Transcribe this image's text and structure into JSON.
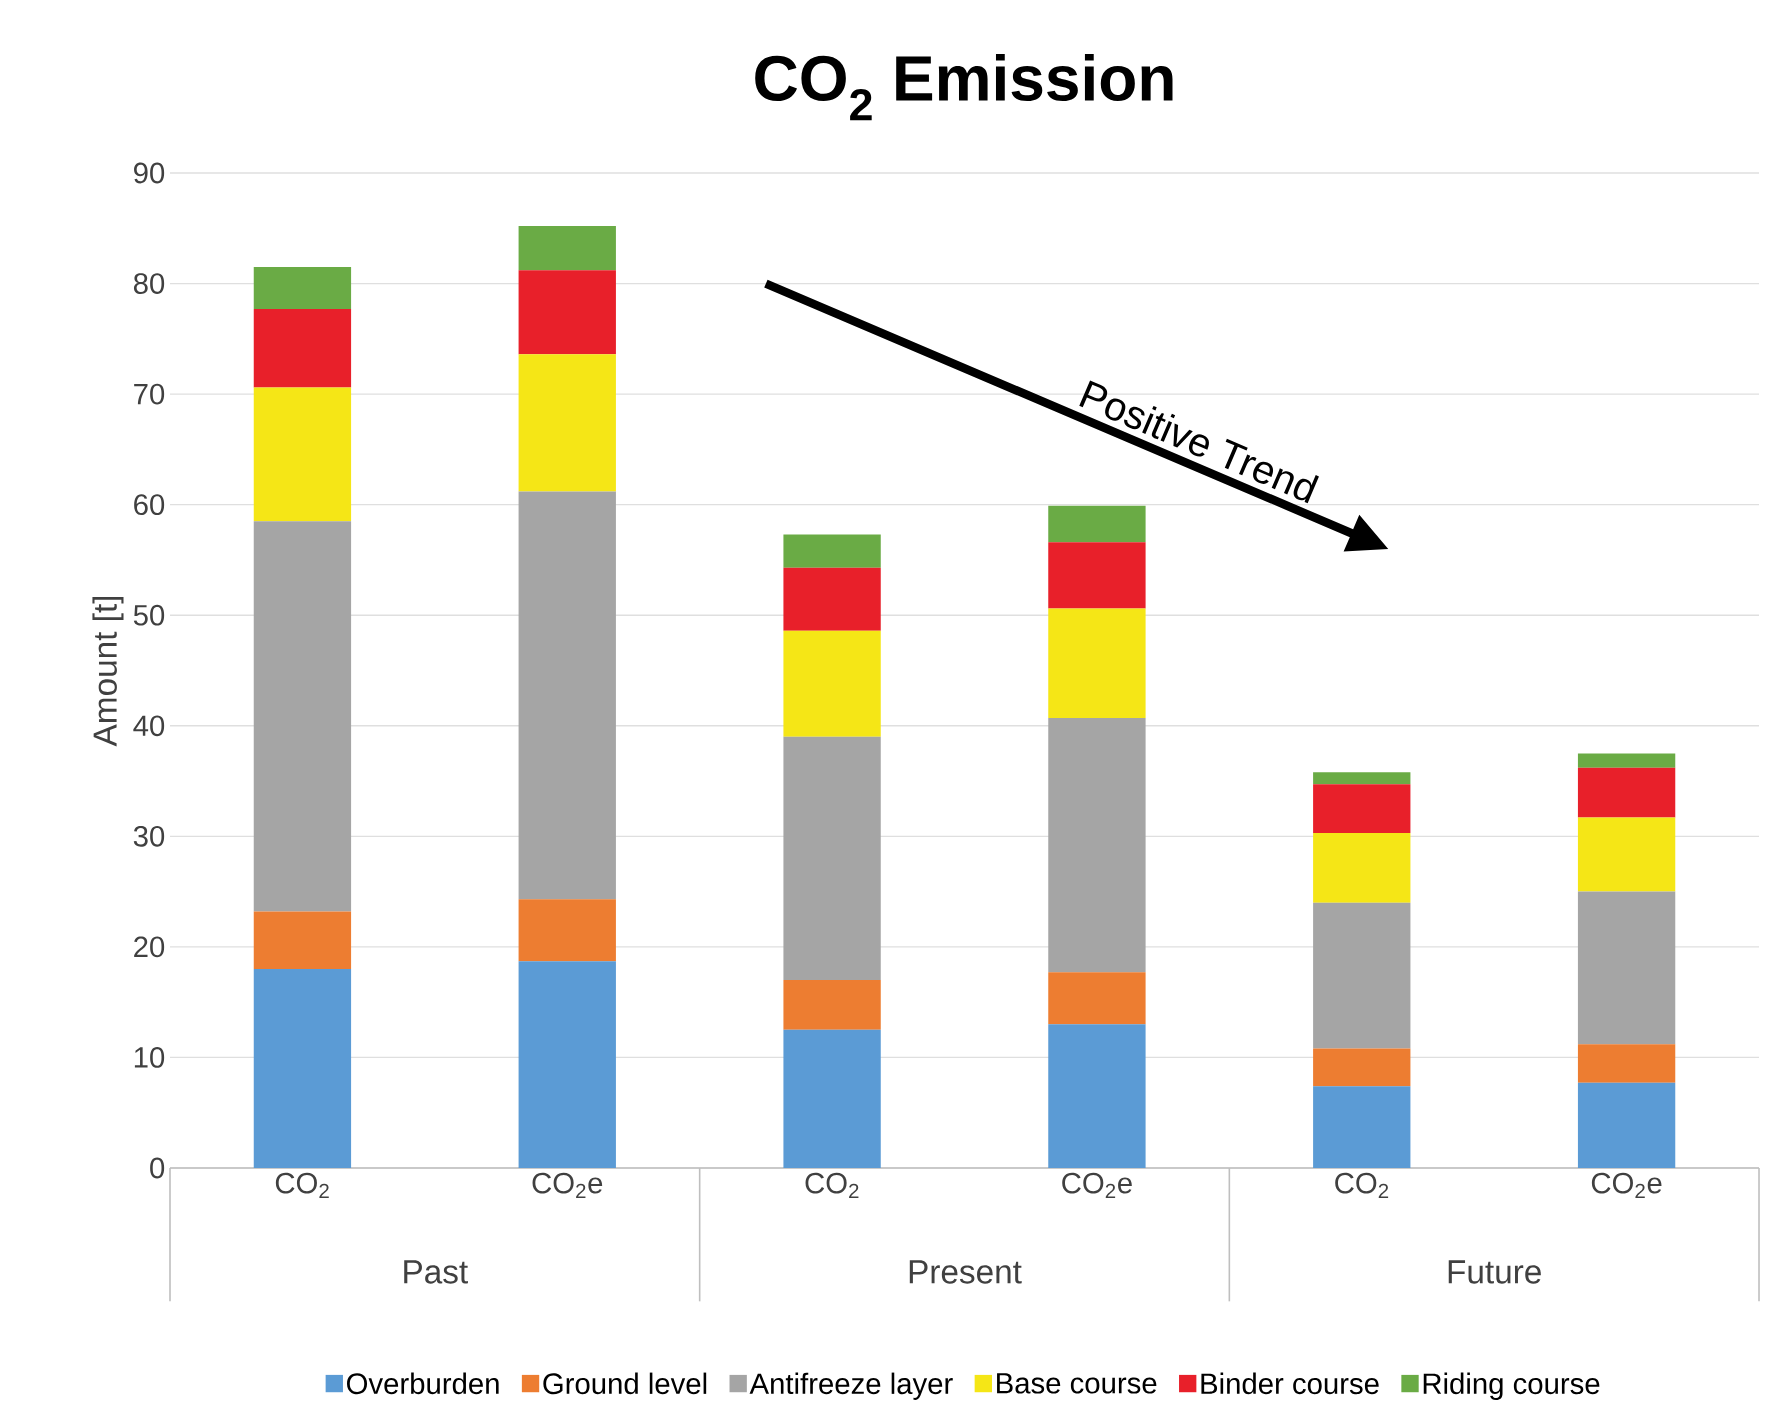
{
  "chart_data": {
    "type": "bar",
    "title": "CO$_{2}$ Emission",
    "ylabel": "Amount [t]",
    "categories": [
      "CO$_{2}$",
      "CO$_{2}$e",
      "CO$_{2}$",
      "CO$_{2}$e",
      "CO$_{2}$",
      "CO$_{2}$e"
    ],
    "stacked": true,
    "grid": "y",
    "legend": "bottom",
    "ylim": [
      0,
      90
    ],
    "yticks": [
      0,
      10,
      20,
      30,
      40,
      50,
      60,
      70,
      80,
      90
    ],
    "annotations": [
      "Past",
      "Present",
      "Future",
      "Positive Trend"
    ],
    "series": [
      {
        "name": "Overburden",
        "color": "#5b9bd5",
        "values": [
          18.0,
          18.7,
          12.5,
          13.0,
          7.4,
          7.7
        ]
      },
      {
        "name": "Ground level",
        "color": "#ed7d31",
        "values": [
          5.2,
          5.6,
          4.5,
          4.7,
          3.4,
          3.5
        ]
      },
      {
        "name": "Antifreeze layer",
        "color": "#a5a5a5",
        "values": [
          35.3,
          36.9,
          22.0,
          23.0,
          13.2,
          13.8
        ]
      },
      {
        "name": "Base course",
        "color": "#f5e616",
        "values": [
          12.1,
          12.4,
          9.6,
          9.9,
          6.3,
          6.7
        ]
      },
      {
        "name": "Binder course",
        "color": "#e8202a",
        "values": [
          7.1,
          7.6,
          5.7,
          6.0,
          4.4,
          4.5
        ]
      },
      {
        "name": "Riding course",
        "color": "#6aab45",
        "values": [
          3.8,
          4.0,
          3.0,
          3.3,
          1.1,
          1.3
        ]
      }
    ]
  }
}
